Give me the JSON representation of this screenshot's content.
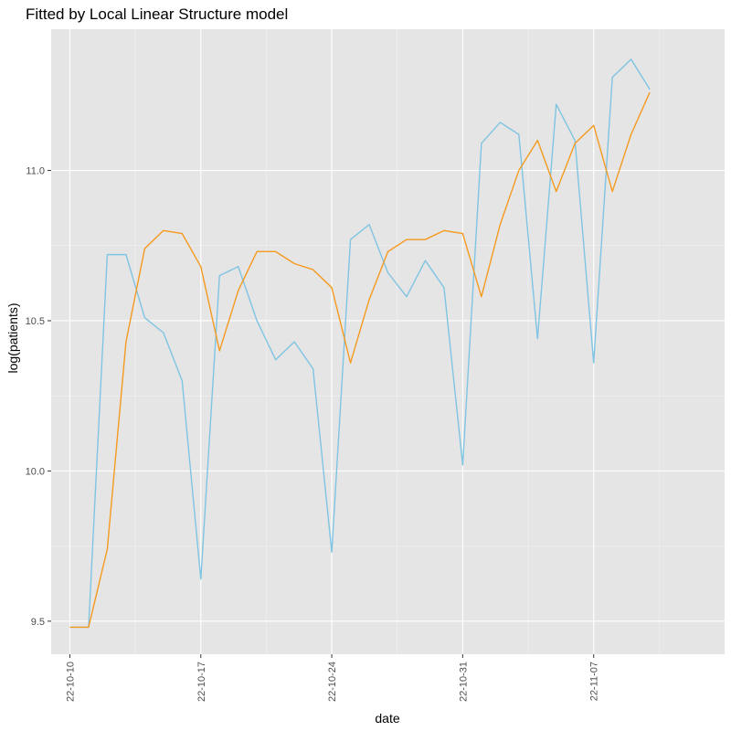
{
  "chart_data": {
    "type": "line",
    "title": "Fitted by Local Linear Structure model",
    "xlabel": "date",
    "ylabel": "log(patients)",
    "x_tick_labels": [
      "22-10-10",
      "22-10-17",
      "22-10-24",
      "22-10-31",
      "22-11-07"
    ],
    "y_tick_labels": [
      "9.5",
      "10.0",
      "10.5",
      "11.0"
    ],
    "y_ticks": [
      9.5,
      10.0,
      10.5,
      11.0
    ],
    "xlim": [
      "2022-10-09",
      "2022-11-14"
    ],
    "ylim": [
      9.39,
      11.47
    ],
    "grid": true,
    "background": "#e5e5e5",
    "x": [
      "2022-10-10",
      "2022-10-11",
      "2022-10-12",
      "2022-10-13",
      "2022-10-14",
      "2022-10-15",
      "2022-10-16",
      "2022-10-17",
      "2022-10-18",
      "2022-10-19",
      "2022-10-20",
      "2022-10-21",
      "2022-10-22",
      "2022-10-23",
      "2022-10-24",
      "2022-10-25",
      "2022-10-26",
      "2022-10-27",
      "2022-10-28",
      "2022-10-29",
      "2022-10-30",
      "2022-10-31",
      "2022-11-01",
      "2022-11-02",
      "2022-11-03",
      "2022-11-04",
      "2022-11-05",
      "2022-11-06",
      "2022-11-07",
      "2022-11-08",
      "2022-11-09",
      "2022-11-10"
    ],
    "series": [
      {
        "color": "#7fc4e2",
        "values": [
          9.48,
          9.48,
          10.72,
          10.72,
          10.51,
          10.46,
          10.3,
          9.64,
          10.65,
          10.68,
          10.5,
          10.37,
          10.43,
          10.34,
          9.73,
          10.77,
          10.82,
          10.66,
          10.58,
          10.7,
          10.61,
          10.02,
          11.09,
          11.16,
          11.12,
          10.44,
          11.22,
          11.1,
          10.36,
          11.31,
          11.37,
          11.27
        ]
      },
      {
        "color": "#f59a1f",
        "values": [
          9.48,
          9.48,
          9.74,
          10.43,
          10.74,
          10.8,
          10.79,
          10.68,
          10.4,
          10.6,
          10.73,
          10.73,
          10.69,
          10.67,
          10.61,
          10.36,
          10.57,
          10.73,
          10.77,
          10.77,
          10.8,
          10.79,
          10.58,
          10.82,
          11.0,
          11.1,
          10.93,
          11.09,
          11.15,
          10.93,
          11.12,
          11.26
        ]
      }
    ]
  }
}
